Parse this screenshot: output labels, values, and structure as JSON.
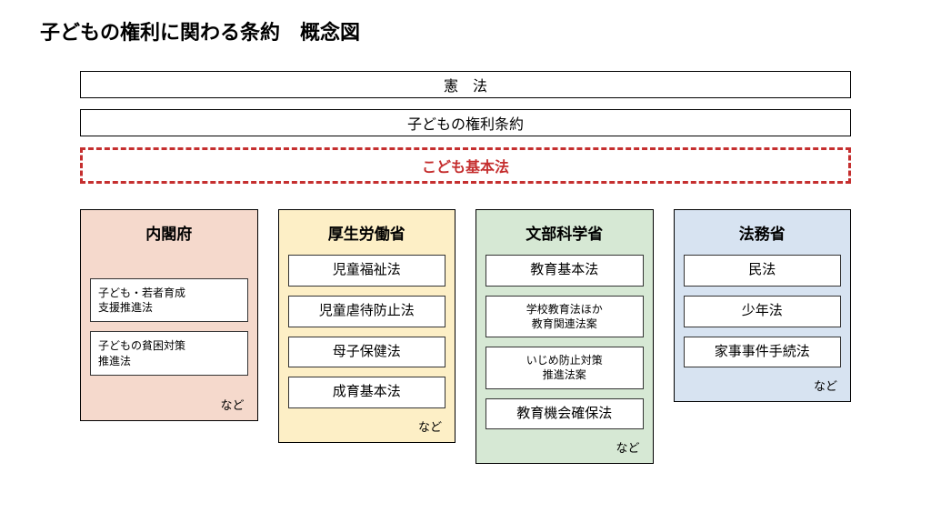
{
  "title": "子どもの権利に関わる条約　概念図",
  "bars": {
    "constitution": "憲　法",
    "convention": "子どもの権利条約",
    "kodomo_basic": "こども基本法"
  },
  "etc_label": "など",
  "colors": {
    "col1_bg": "#f5d9cc",
    "col2_bg": "#fdefc6",
    "col3_bg": "#d6e8d4",
    "col4_bg": "#d7e3f1",
    "dashed_border": "#c52f2f"
  },
  "columns": [
    {
      "title": "内閣府",
      "bg": "#f5d9cc",
      "laws_small_left": [
        "子ども・若者育成\n支援推進法",
        "子どもの貧困対策\n推進法"
      ],
      "laws": [],
      "show_etc": true
    },
    {
      "title": "厚生労働省",
      "bg": "#fdefc6",
      "laws": [
        "児童福祉法",
        "児童虐待防止法",
        "母子保健法",
        "成育基本法"
      ],
      "laws_small_center": [],
      "show_etc": true
    },
    {
      "title": "文部科学省",
      "bg": "#d6e8d4",
      "laws_mixed": [
        {
          "text": "教育基本法",
          "style": "big"
        },
        {
          "text": "学校教育法ほか\n教育関連法案",
          "style": "small"
        },
        {
          "text": "いじめ防止対策\n推進法案",
          "style": "small"
        },
        {
          "text": "教育機会確保法",
          "style": "big"
        }
      ],
      "show_etc": true
    },
    {
      "title": "法務省",
      "bg": "#d7e3f1",
      "laws": [
        "民法",
        "少年法",
        "家事事件手続法"
      ],
      "show_etc": true
    }
  ]
}
